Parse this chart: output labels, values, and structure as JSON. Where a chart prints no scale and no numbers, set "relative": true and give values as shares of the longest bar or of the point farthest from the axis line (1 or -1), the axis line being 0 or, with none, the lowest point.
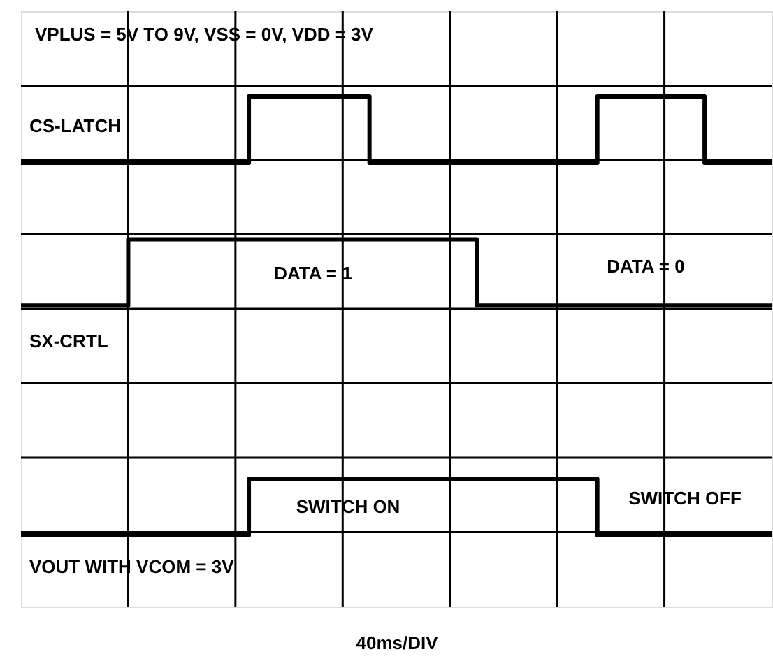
{
  "chart_data": {
    "type": "step",
    "xlabel": "40ms/DIV",
    "relative": true,
    "tick_labels": false,
    "grid": true,
    "line_style": "solid",
    "categories": [
      null,
      null,
      null,
      null,
      null,
      null,
      null,
      null,
      null,
      null,
      null,
      null,
      null,
      null,
      null,
      null,
      null,
      null,
      null,
      null,
      null,
      null,
      null,
      null,
      null,
      null,
      null,
      null,
      null,
      null,
      null,
      null,
      null,
      null,
      null,
      null,
      null,
      null,
      null,
      null,
      null,
      null,
      null,
      null,
      null,
      null,
      null,
      null,
      null,
      null,
      null,
      null,
      null,
      null,
      null,
      null,
      null
    ],
    "series": [
      {
        "name": "CS-LATCH",
        "color": "#000000",
        "values": [
          0.87,
          0.87,
          0.87,
          0.87,
          0.87,
          0.87,
          0.87,
          0.87,
          0.87,
          0.87,
          0.87,
          0.87,
          0.87,
          0.87,
          0.87,
          0.87,
          0.87,
          1,
          1,
          1,
          1,
          1,
          1,
          1,
          1,
          1,
          0.87,
          0.87,
          0.87,
          0.87,
          0.87,
          0.87,
          0.87,
          0.87,
          0.87,
          0.87,
          0.87,
          0.87,
          0.87,
          0.87,
          0.87,
          0.87,
          0.87,
          1,
          1,
          1,
          1,
          1,
          1,
          1,
          1,
          0.87,
          0.87,
          0.87,
          0.87,
          0.87,
          0.87
        ]
      },
      {
        "name": "SX-CRTL",
        "color": "#000000",
        "values": [
          0.59,
          0.59,
          0.59,
          0.59,
          0.59,
          0.59,
          0.59,
          0.59,
          0.72,
          0.72,
          0.72,
          0.72,
          0.72,
          0.72,
          0.72,
          0.72,
          0.72,
          0.72,
          0.72,
          0.72,
          0.72,
          0.72,
          0.72,
          0.72,
          0.72,
          0.72,
          0.72,
          0.72,
          0.72,
          0.72,
          0.72,
          0.72,
          0.72,
          0.72,
          0.59,
          0.59,
          0.59,
          0.59,
          0.59,
          0.59,
          0.59,
          0.59,
          0.59,
          0.59,
          0.59,
          0.59,
          0.59,
          0.59,
          0.59,
          0.59,
          0.59,
          0.59,
          0.59,
          0.59,
          0.59,
          0.59,
          0.59
        ]
      },
      {
        "name": "VOUT WITH VCOM = 3V",
        "color": "#000000",
        "values": [
          0.14,
          0.14,
          0.14,
          0.14,
          0.14,
          0.14,
          0.14,
          0.14,
          0.14,
          0.14,
          0.14,
          0.14,
          0.14,
          0.14,
          0.14,
          0.14,
          0.14,
          0.25,
          0.25,
          0.25,
          0.25,
          0.25,
          0.25,
          0.25,
          0.25,
          0.25,
          0.25,
          0.25,
          0.25,
          0.25,
          0.25,
          0.25,
          0.25,
          0.25,
          0.25,
          0.25,
          0.25,
          0.25,
          0.25,
          0.25,
          0.25,
          0.25,
          0.25,
          0.14,
          0.14,
          0.14,
          0.14,
          0.14,
          0.14,
          0.14,
          0.14,
          0.14,
          0.14,
          0.14,
          0.14,
          0.14,
          0.14
        ]
      }
    ],
    "annotations": [
      "VPLUS = 5V TO 9V, VSS = 0V, VDD = 3V",
      "DATA = 1",
      "DATA = 0",
      "SWITCH ON",
      "SWITCH OFF"
    ]
  }
}
